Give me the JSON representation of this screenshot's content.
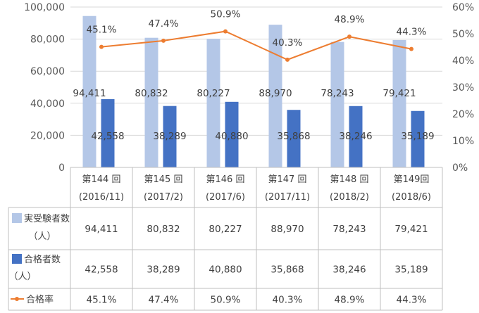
{
  "colors": {
    "applicants": "#b4c7e7",
    "passers": "#4472c4",
    "rate": "#ed7d31",
    "grid": "#d9d9d9",
    "table_line": "#bfbfbf"
  },
  "chart_data": {
    "type": "bar",
    "categories": [
      [
        "第144 回",
        "(2016/11)"
      ],
      [
        "第145 回",
        "(2017/2)"
      ],
      [
        "第146 回",
        "(2017/6)"
      ],
      [
        "第147 回",
        "(2017/11)"
      ],
      [
        "第148 回",
        "(2018/2)"
      ],
      [
        "第149回",
        "(2018/6)"
      ]
    ],
    "series": [
      {
        "name": [
          "実受験者数",
          "（人）"
        ],
        "kind": "bar",
        "axis": "left",
        "values": [
          94411,
          80832,
          80227,
          88970,
          78243,
          79421
        ],
        "labels": [
          "94,411",
          "80,832",
          "80,227",
          "88,970",
          "78,243",
          "79,421"
        ]
      },
      {
        "name": [
          "合格者数",
          "（人）"
        ],
        "kind": "bar",
        "axis": "left",
        "values": [
          42558,
          38289,
          40880,
          35868,
          38246,
          35189
        ],
        "labels": [
          "42,558",
          "38,289",
          "40,880",
          "35,868",
          "38,246",
          "35,189"
        ]
      },
      {
        "name": [
          "合格率"
        ],
        "kind": "line",
        "axis": "right",
        "values": [
          45.1,
          47.4,
          50.9,
          40.3,
          48.9,
          44.3
        ],
        "labels": [
          "45.1%",
          "47.4%",
          "50.9%",
          "40.3%",
          "48.9%",
          "44.3%"
        ]
      }
    ],
    "y_left": {
      "range": [
        0,
        100000
      ],
      "ticks": [
        "0",
        "20,000",
        "40,000",
        "60,000",
        "80,000",
        "100,000"
      ]
    },
    "y_right": {
      "range": [
        0,
        60
      ],
      "ticks": [
        "0%",
        "10%",
        "20%",
        "30%",
        "40%",
        "50%",
        "60%"
      ]
    },
    "data_table": true,
    "legend": "data-table-rows"
  }
}
